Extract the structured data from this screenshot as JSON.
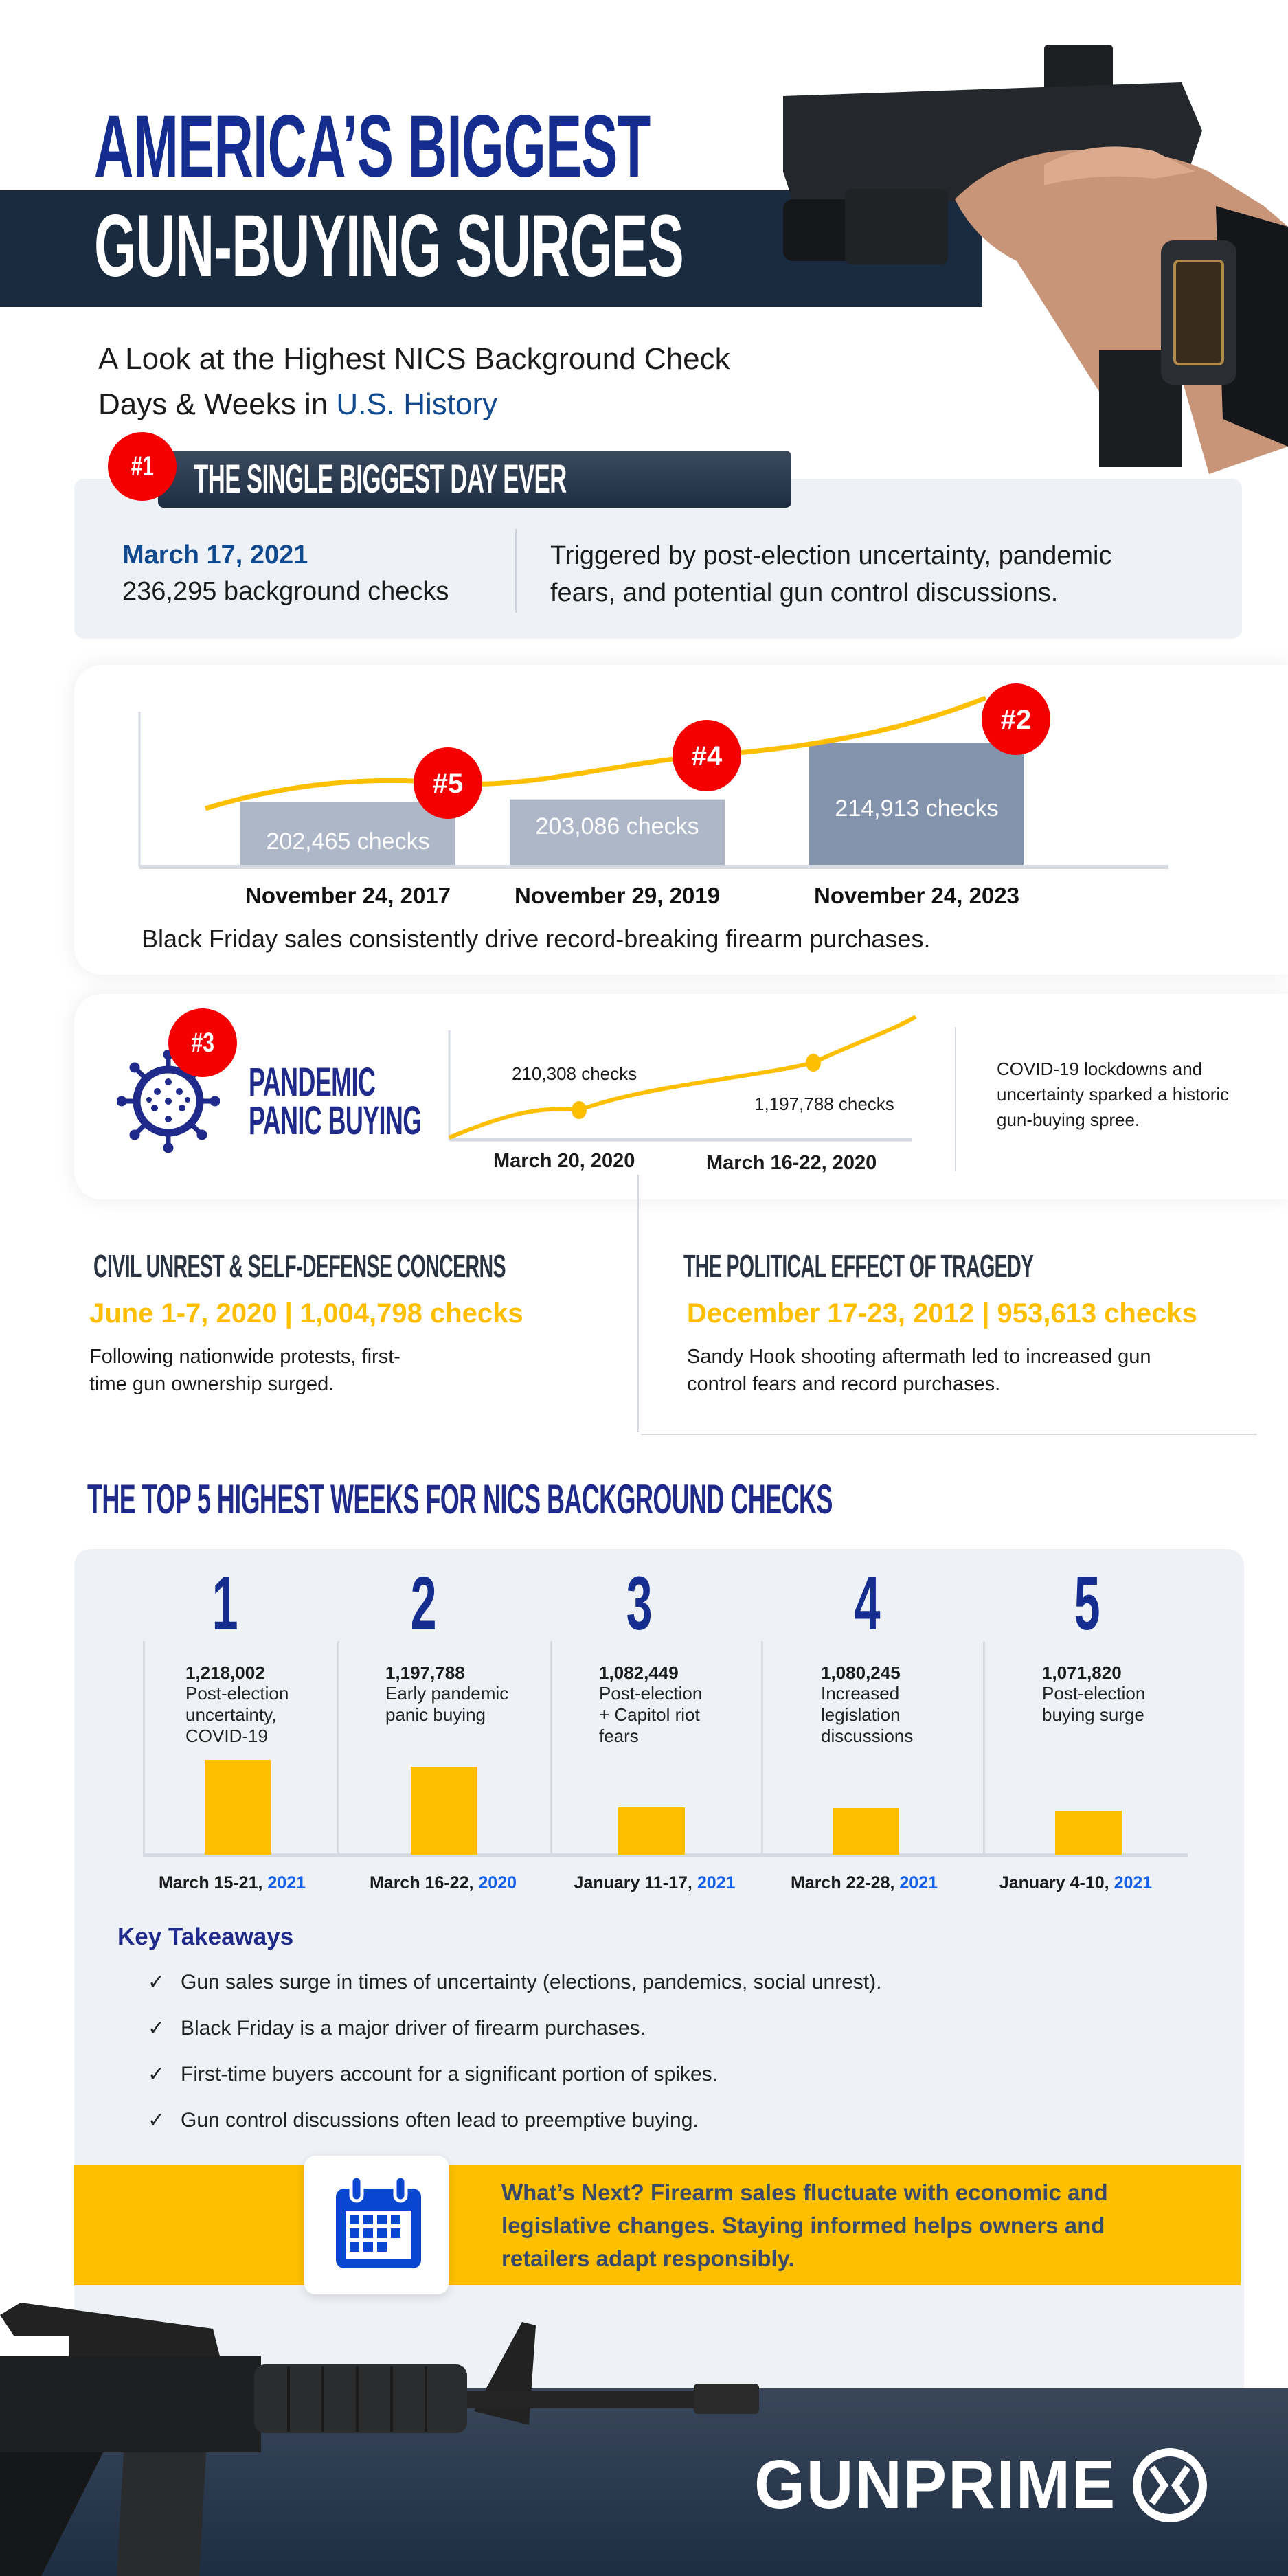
{
  "header": {
    "title_line1": "AMERICA’S BIGGEST",
    "title_line2": "GUN-BUYING SURGES",
    "subtitle_line1": "A Look at the Highest NICS Background Check",
    "subtitle_line2_prefix": "Days & Weeks in ",
    "subtitle_line2_highlight": "U.S. History"
  },
  "biggest_day": {
    "rank": "#1",
    "heading": "THE SINGLE BIGGEST DAY EVER",
    "date": "March 17, 2021",
    "checks": "236,295 background checks",
    "description_line1": "Triggered by post-election uncertainty, pandemic",
    "description_line2": "fears, and potential gun control discussions."
  },
  "black_friday": {
    "caption": "Black Friday sales consistently drive record-breaking firearm purchases.",
    "bars": [
      {
        "rank": "#5",
        "label": "202,465  checks",
        "date": "November 24, 2017",
        "value": 202465
      },
      {
        "rank": "#4",
        "label": "203,086 checks",
        "date": "November 29, 2019",
        "value": 203086
      },
      {
        "rank": "#2",
        "label": "214,913 checks",
        "date": "November 24, 2023",
        "value": 214913
      }
    ]
  },
  "pandemic": {
    "rank": "#3",
    "title_line1": "PANDEMIC",
    "title_line2": "PANIC BUYING",
    "point1_label": "210,308 checks",
    "point1_date": "March 20, 2020",
    "point2_label": "1,197,788 checks",
    "point2_date": "March 16-22, 2020",
    "description_line1": "COVID-19 lockdowns and",
    "description_line2": "uncertainty sparked a historic",
    "description_line3": "gun-buying spree."
  },
  "civil_unrest": {
    "heading": "CIVIL UNREST & SELF-DEFENSE CONCERNS",
    "stat": "June 1-7, 2020 | 1,004,798 checks",
    "desc_line1": "Following nationwide protests, first-",
    "desc_line2": "time gun ownership surged."
  },
  "tragedy": {
    "heading": "THE POLITICAL EFFECT OF TRAGEDY",
    "stat": "December 17-23, 2012 | 953,613 checks",
    "desc_line1": "Sandy Hook shooting aftermath led to increased gun",
    "desc_line2": "control fears and record purchases."
  },
  "top_weeks": {
    "heading": "THE TOP 5 HIGHEST WEEKS FOR NICS BACKGROUND CHECKS",
    "weeks": [
      {
        "rank": "1",
        "value": "1,218,002",
        "desc": [
          "Post-election",
          "uncertainty,",
          "COVID-19"
        ],
        "date": "March 15-21, ",
        "year": "2021",
        "checks": 1218002
      },
      {
        "rank": "2",
        "value": "1,197,788",
        "desc": [
          "Early pandemic",
          "panic buying"
        ],
        "date": "March 16-22, ",
        "year": "2020",
        "checks": 1197788
      },
      {
        "rank": "3",
        "value": "1,082,449",
        "desc": [
          "Post-election",
          "+ Capitol riot",
          "fears"
        ],
        "date": "January 11-17, ",
        "year": "2021",
        "checks": 1082449
      },
      {
        "rank": "4",
        "value": "1,080,245",
        "desc": [
          "Increased",
          "legislation",
          "discussions"
        ],
        "date": "March 22-28, ",
        "year": "2021",
        "checks": 1080245
      },
      {
        "rank": "5",
        "value": "1,071,820",
        "desc": [
          "Post-election",
          "buying surge"
        ],
        "date": "January 4-10, ",
        "year": "2021",
        "checks": 1071820
      }
    ]
  },
  "takeaways": {
    "heading": "Key Takeaways",
    "check_icon": "✓",
    "items": [
      "Gun sales surge in times of uncertainty (elections, pandemics, social unrest).",
      "Black Friday is a major driver of firearm purchases.",
      "First-time buyers account for a significant portion of spikes.",
      "Gun control discussions often lead to preemptive buying."
    ]
  },
  "whats_next": {
    "icon": "calendar-icon",
    "line1": "What’s Next? Firearm sales fluctuate with economic and",
    "line2": "legislative changes. Staying informed helps owners and",
    "line3": "retailers adapt responsibly."
  },
  "footer": {
    "logo": "GUNPRIME"
  },
  "colors": {
    "navy": "#1f2a8a",
    "dark_band": "#1a2b40",
    "red": "#f40000",
    "yellow": "#fdbf00",
    "blue_year": "#1560e6",
    "bar_light": "#adb7c8",
    "bar_dark": "#8594ad"
  }
}
